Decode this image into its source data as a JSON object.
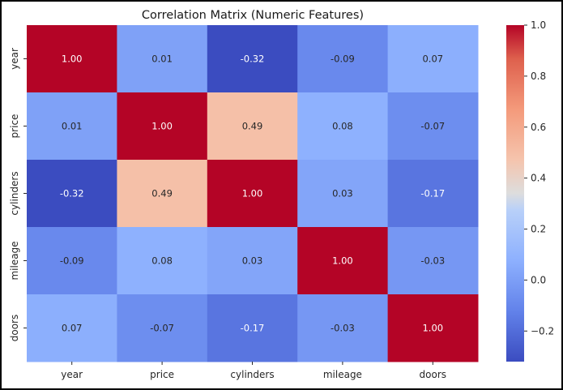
{
  "chart_data": {
    "type": "heatmap",
    "title": "Correlation Matrix (Numeric Features)",
    "x_categories": [
      "year",
      "price",
      "cylinders",
      "mileage",
      "doors"
    ],
    "y_categories": [
      "year",
      "price",
      "cylinders",
      "mileage",
      "doors"
    ],
    "values": [
      [
        1.0,
        0.01,
        -0.32,
        -0.09,
        0.07
      ],
      [
        0.01,
        1.0,
        0.49,
        0.08,
        -0.07
      ],
      [
        -0.32,
        0.49,
        1.0,
        0.03,
        -0.17
      ],
      [
        -0.09,
        0.08,
        0.03,
        1.0,
        -0.03
      ],
      [
        0.07,
        -0.07,
        -0.17,
        -0.03,
        1.0
      ]
    ],
    "value_labels": [
      [
        "1.00",
        "0.01",
        "-0.32",
        "-0.09",
        "0.07"
      ],
      [
        "0.01",
        "1.00",
        "0.49",
        "0.08",
        "-0.07"
      ],
      [
        "-0.32",
        "0.49",
        "1.00",
        "0.03",
        "-0.17"
      ],
      [
        "-0.09",
        "0.08",
        "0.03",
        "1.00",
        "-0.03"
      ],
      [
        "0.07",
        "-0.07",
        "-0.17",
        "-0.03",
        "1.00"
      ]
    ],
    "colorscale": "coolwarm",
    "color_range": [
      -0.32,
      1.0
    ],
    "colorbar_ticks": [
      1.0,
      0.8,
      0.6,
      0.4,
      0.2,
      0.0,
      -0.2
    ],
    "colorbar_tick_labels": [
      "1.0",
      "0.8",
      "0.6",
      "0.4",
      "0.2",
      "0.0",
      "−0.2"
    ],
    "colorbar_position": "right",
    "grid": false
  }
}
